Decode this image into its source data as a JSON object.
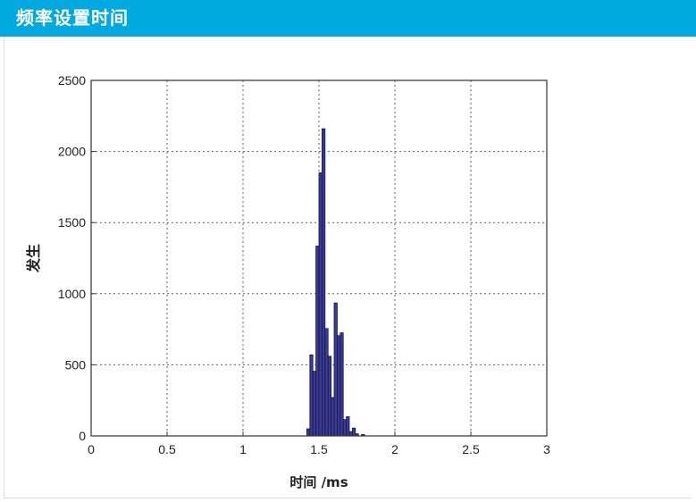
{
  "header": {
    "title": "频率设置时间"
  },
  "colors": {
    "header_bg": "#00a9e0",
    "header_text": "#ffffff",
    "bar_fill": "#3a3b8f",
    "bar_stroke": "#141450",
    "grid": "#5f5f5f",
    "axis": "#333333"
  },
  "chart_data": {
    "type": "bar",
    "title": "",
    "xlabel": "时间 /ms",
    "ylabel": "发生",
    "xlim": [
      0,
      3
    ],
    "ylim": [
      0,
      2500
    ],
    "x_ticks": [
      0,
      0.5,
      1,
      1.5,
      2,
      2.5,
      3
    ],
    "x_tick_labels": [
      "0",
      "0.5",
      "1",
      "1.5",
      "2",
      "2.5",
      "3"
    ],
    "y_ticks": [
      0,
      500,
      1000,
      1500,
      2000,
      2500
    ],
    "y_tick_labels": [
      "0",
      "500",
      "1000",
      "1500",
      "2000",
      "2500"
    ],
    "grid": true,
    "bin_width": 0.02,
    "bins": [
      {
        "x": 1.43,
        "value": 50
      },
      {
        "x": 1.45,
        "value": 570
      },
      {
        "x": 1.47,
        "value": 455
      },
      {
        "x": 1.49,
        "value": 1335
      },
      {
        "x": 1.51,
        "value": 1850
      },
      {
        "x": 1.53,
        "value": 2160
      },
      {
        "x": 1.55,
        "value": 755
      },
      {
        "x": 1.57,
        "value": 560
      },
      {
        "x": 1.59,
        "value": 270
      },
      {
        "x": 1.61,
        "value": 935
      },
      {
        "x": 1.63,
        "value": 705
      },
      {
        "x": 1.65,
        "value": 725
      },
      {
        "x": 1.67,
        "value": 115
      },
      {
        "x": 1.69,
        "value": 135
      },
      {
        "x": 1.71,
        "value": 30
      },
      {
        "x": 1.73,
        "value": 55
      },
      {
        "x": 1.75,
        "value": 15
      },
      {
        "x": 1.79,
        "value": 10
      }
    ]
  }
}
